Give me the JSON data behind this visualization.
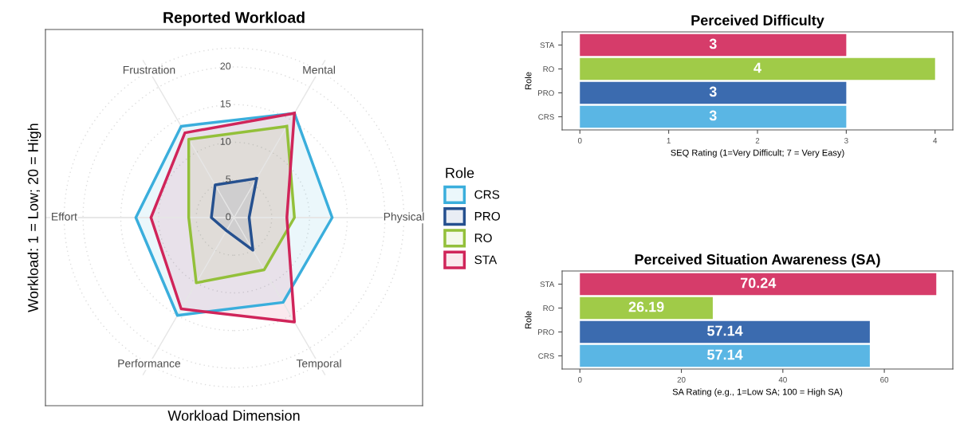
{
  "chart_data": [
    {
      "type": "radar",
      "title": "Reported Workload",
      "xlabel": "Workload Dimension",
      "ylabel": "Workload: 1 = Low; 20 = High",
      "legend_title": "Role",
      "legend": "right",
      "grid": true,
      "categories": [
        "Mental",
        "Physical",
        "Temporal",
        "Performance",
        "Effort",
        "Frustration"
      ],
      "ylim": [
        0,
        22.5
      ],
      "yticks": [
        0,
        5,
        10,
        15,
        20
      ],
      "series": [
        {
          "name": "CRS",
          "color": "#3aaedc",
          "values": [
            16,
            13,
            13,
            15,
            13,
            14
          ]
        },
        {
          "name": "PRO",
          "color": "#25508f",
          "values": [
            6,
            2,
            5,
            2,
            3,
            5
          ]
        },
        {
          "name": "RO",
          "color": "#93c03a",
          "values": [
            14,
            8,
            8,
            10,
            6,
            12
          ]
        },
        {
          "name": "STA",
          "color": "#d0255a",
          "values": [
            16,
            7,
            16,
            14,
            11,
            13
          ]
        }
      ]
    },
    {
      "type": "bar",
      "orientation": "horizontal",
      "title": "Perceived Difficulty",
      "xlabel": "SEQ Rating (1=Very Difficult; 7 = Very Easy)",
      "ylabel": "Role",
      "categories": [
        "STA",
        "RO",
        "PRO",
        "CRS"
      ],
      "values": [
        3,
        4,
        3,
        3
      ],
      "colors": [
        "#d63c6a",
        "#a0cb48",
        "#3b6baf",
        "#5ab6e4"
      ],
      "xlim": [
        -0.2,
        4.2
      ],
      "xticks": [
        0,
        1,
        2,
        3,
        4
      ],
      "data_labels": true
    },
    {
      "type": "bar",
      "orientation": "horizontal",
      "title": "Perceived Situation Awareness (SA)",
      "xlabel": "SA Rating (e.g., 1=Low SA; 100 = High SA)",
      "ylabel": "Role",
      "categories": [
        "STA",
        "RO",
        "PRO",
        "CRS"
      ],
      "values": [
        70.24,
        26.19,
        57.14,
        57.14
      ],
      "colors": [
        "#d63c6a",
        "#a0cb48",
        "#3b6baf",
        "#5ab6e4"
      ],
      "xlim": [
        -3.5,
        73.5
      ],
      "xticks": [
        0,
        20,
        40,
        60
      ],
      "data_labels": true
    }
  ]
}
